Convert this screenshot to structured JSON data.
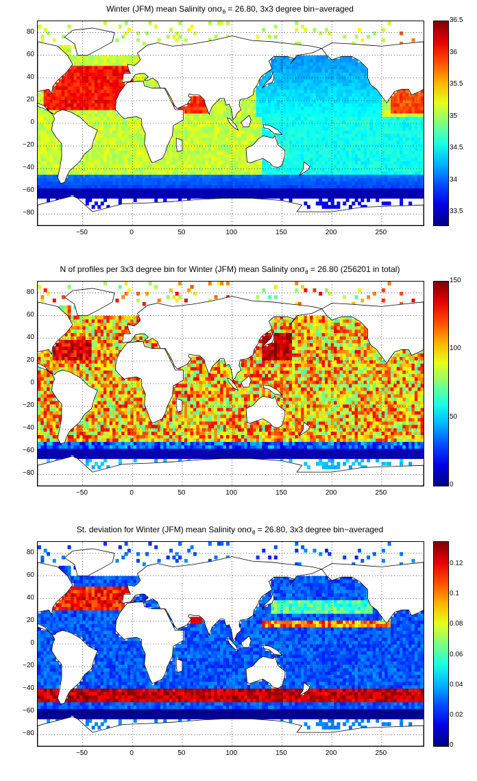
{
  "panels": [
    {
      "title_pre": "Winter (JFM) mean Salinity on",
      "title_sym": "σ",
      "title_sub": "θ",
      "title_post": " = 26.80, 3x3 degree bin−averaged",
      "colorbar": {
        "min": 33.3,
        "max": 36.5,
        "ticks": [
          "33.5",
          "34",
          "34.5",
          "35",
          "35.5",
          "36",
          "36.5"
        ],
        "tick_values": [
          33.5,
          34,
          34.5,
          35,
          35.5,
          36,
          36.5
        ]
      },
      "field": "salinity"
    },
    {
      "title_pre": "N of profiles per 3x3 degree bin for Winter (JFM) mean Salinity on",
      "title_sym": "σ",
      "title_sub": "θ",
      "title_post": " = 26.80 (256201 in total)",
      "colorbar": {
        "min": 0,
        "max": 150,
        "ticks": [
          "0",
          "50",
          "100",
          "150"
        ],
        "tick_values": [
          0,
          50,
          100,
          150
        ]
      },
      "field": "count"
    },
    {
      "title_pre": "St. deviation for Winter (JFM) mean Salinity on",
      "title_sym": "σ",
      "title_sub": "θ",
      "title_post": " = 26.80, 3x3 degree bin−averaged",
      "colorbar": {
        "min": 0,
        "max": 0.135,
        "ticks": [
          "0",
          "0.02",
          "0.04",
          "0.06",
          "0.08",
          "0.1",
          "0.12"
        ],
        "tick_values": [
          0,
          0.02,
          0.04,
          0.06,
          0.08,
          0.1,
          0.12
        ]
      },
      "field": "stdev"
    }
  ],
  "axes": {
    "xlim": [
      -95,
      292
    ],
    "ylim": [
      -90,
      90
    ],
    "xticks": [
      "−50",
      "0",
      "50",
      "100",
      "150",
      "200",
      "250"
    ],
    "xtick_values": [
      -50,
      0,
      50,
      100,
      150,
      200,
      250
    ],
    "yticks": [
      "80",
      "60",
      "40",
      "20",
      "0",
      "−20",
      "−40",
      "−60",
      "−80"
    ],
    "ytick_values": [
      80,
      60,
      40,
      20,
      0,
      -20,
      -40,
      -60,
      -80
    ],
    "grid": "dotted",
    "colormap": "jet",
    "bin_size_deg": 3
  },
  "colors": {
    "land_fill": "#ffffff",
    "coast": "#000000",
    "grid": "#000000"
  }
}
